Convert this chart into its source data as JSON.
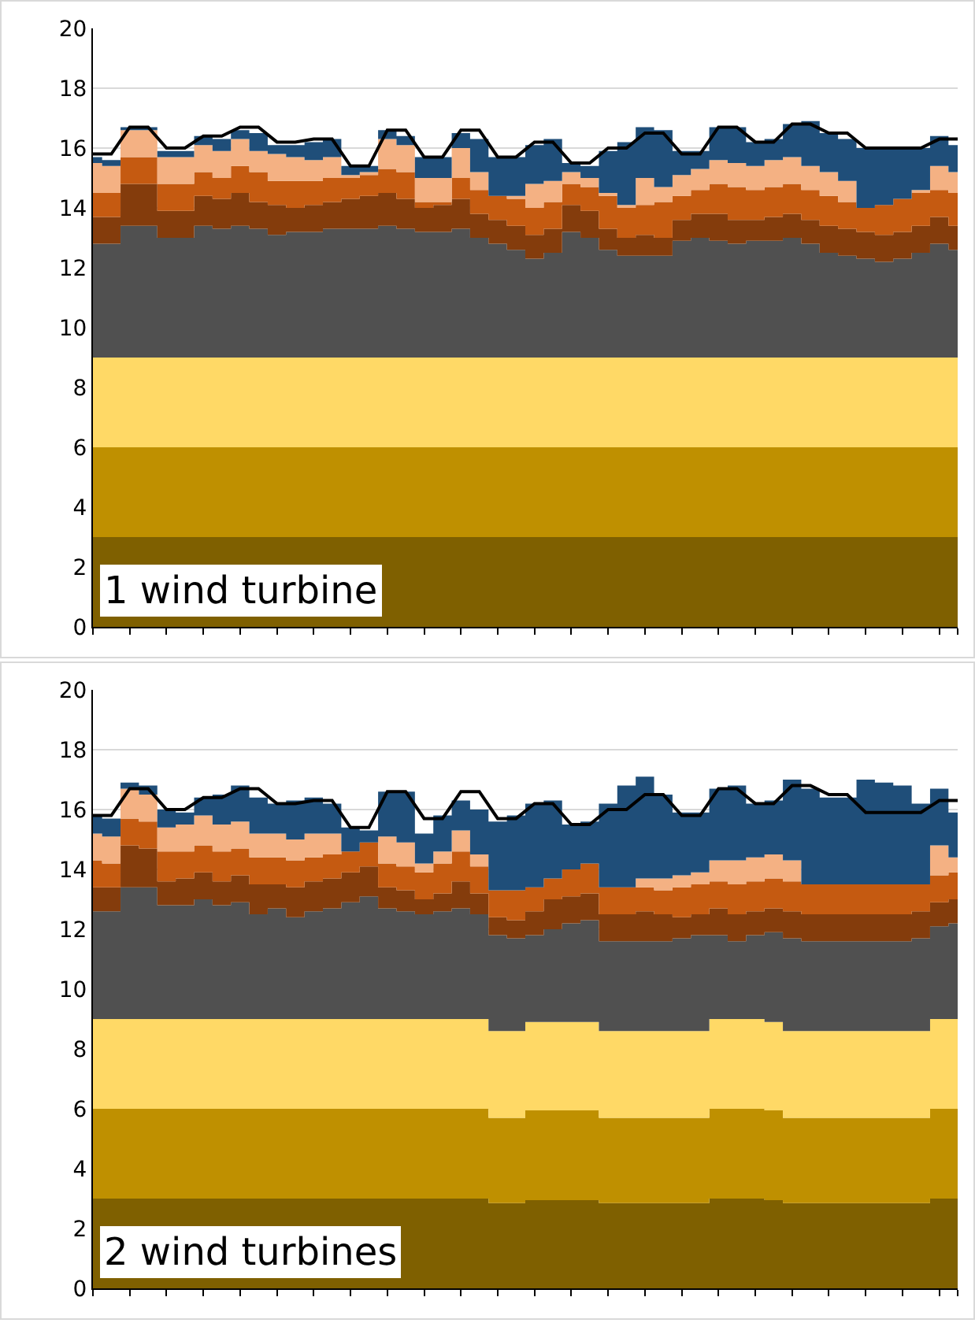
{
  "chart_data": [
    {
      "type": "area",
      "stacked": true,
      "annotations": [
        "1 wind turbine"
      ],
      "categories": [
        null,
        null,
        null,
        null,
        null,
        null,
        null,
        null,
        null,
        null,
        null,
        null,
        null,
        null,
        null,
        null,
        null,
        null,
        null,
        null,
        null,
        null,
        null,
        null,
        null,
        null,
        null,
        null,
        null,
        null,
        null,
        null,
        null,
        null,
        null,
        null,
        null,
        null,
        null,
        null,
        null,
        null,
        null,
        null,
        null,
        null,
        null,
        null
      ],
      "ylim": [
        0,
        20
      ],
      "yticks": [
        0,
        2,
        4,
        6,
        8,
        10,
        12,
        14,
        16,
        18,
        20
      ],
      "grid": "y",
      "tick_labels": "y",
      "series": [
        {
          "color": "#7f6000",
          "values": [
            3,
            3,
            3,
            3,
            3,
            3,
            3,
            3,
            3,
            3,
            3,
            3,
            3,
            3,
            3,
            3,
            3,
            3,
            3,
            3,
            3,
            3,
            3,
            3,
            3,
            3,
            3,
            3,
            3,
            3,
            3,
            3,
            3,
            3,
            3,
            3,
            3,
            3,
            3,
            3,
            3,
            3,
            3,
            3,
            3,
            3,
            3,
            3
          ]
        },
        {
          "color": "#bf9000",
          "values": [
            3,
            3,
            3,
            3,
            3,
            3,
            3,
            3,
            3,
            3,
            3,
            3,
            3,
            3,
            3,
            3,
            3,
            3,
            3,
            3,
            3,
            3,
            3,
            3,
            3,
            3,
            3,
            3,
            3,
            3,
            3,
            3,
            3,
            3,
            3,
            3,
            3,
            3,
            3,
            3,
            3,
            3,
            3,
            3,
            3,
            3,
            3,
            3
          ]
        },
        {
          "color": "#ffd966",
          "values": [
            3,
            3,
            3,
            3,
            3,
            3,
            3,
            3,
            3,
            3,
            3,
            3,
            3,
            3,
            3,
            3,
            3,
            3,
            3,
            3,
            3,
            3,
            3,
            3,
            3,
            3,
            3,
            3,
            3,
            3,
            3,
            3,
            3,
            3,
            3,
            3,
            3,
            3,
            3,
            3,
            3,
            3,
            3,
            3,
            3,
            3,
            3,
            3
          ]
        },
        {
          "color": "#505050",
          "values": [
            3.8,
            3.8,
            4.4,
            4.4,
            4.0,
            4.0,
            4.4,
            4.3,
            4.4,
            4.3,
            4.1,
            4.2,
            4.2,
            4.3,
            4.3,
            4.3,
            4.4,
            4.3,
            4.2,
            4.2,
            4.3,
            4.0,
            3.8,
            3.6,
            3.3,
            3.5,
            4.2,
            4.0,
            3.6,
            3.4,
            3.4,
            3.4,
            3.9,
            4.0,
            3.9,
            3.8,
            3.9,
            3.9,
            4.0,
            3.8,
            3.5,
            3.4,
            3.3,
            3.2,
            3.3,
            3.5,
            3.8,
            3.6
          ]
        },
        {
          "color": "#843c0c",
          "values": [
            0.9,
            0.9,
            1.4,
            1.4,
            0.9,
            0.9,
            1.0,
            1.0,
            1.1,
            0.9,
            1.0,
            0.8,
            0.9,
            0.9,
            1.0,
            1.1,
            1.1,
            1.0,
            0.8,
            0.9,
            1.0,
            0.8,
            0.8,
            0.8,
            0.8,
            0.8,
            0.9,
            0.9,
            0.7,
            0.6,
            0.7,
            0.6,
            0.7,
            0.8,
            0.9,
            0.8,
            0.7,
            0.8,
            0.8,
            0.8,
            0.9,
            0.9,
            0.9,
            0.9,
            0.9,
            0.9,
            0.9,
            0.8
          ]
        },
        {
          "color": "#c55a11",
          "values": [
            0.8,
            0.8,
            0.9,
            0.9,
            0.9,
            0.9,
            0.8,
            0.7,
            0.9,
            1.0,
            0.8,
            0.9,
            0.8,
            0.8,
            0.7,
            0.7,
            0.8,
            0.9,
            0.2,
            0.1,
            0.7,
            0.8,
            0.8,
            0.9,
            0.9,
            0.9,
            0.7,
            0.8,
            1.1,
            1.0,
            1.0,
            1.2,
            0.8,
            0.8,
            1.0,
            1.1,
            1.0,
            1.0,
            1.0,
            1.0,
            1.0,
            0.9,
            0.8,
            1.0,
            1.1,
            1.1,
            0.9,
            1.1
          ]
        },
        {
          "color": "#f4b183",
          "values": [
            1.0,
            0.9,
            0.9,
            0.9,
            0.9,
            0.9,
            0.9,
            0.9,
            0.9,
            0.7,
            0.9,
            0.8,
            0.7,
            0.7,
            0.1,
            0.1,
            1.0,
            0.9,
            0.8,
            0.8,
            1.0,
            0.6,
            0,
            0.1,
            0.8,
            0.7,
            0.4,
            0.3,
            0.1,
            0.1,
            0.9,
            0.5,
            0.7,
            0.7,
            0.8,
            0.8,
            0.8,
            0.9,
            0.9,
            0.8,
            0.8,
            0.7,
            0,
            0,
            0,
            0.1,
            0.8,
            0.7
          ]
        },
        {
          "color": "#1f4e79",
          "values": [
            0.2,
            0.2,
            0.1,
            0.1,
            0.2,
            0.2,
            0.3,
            0.4,
            0.3,
            0.6,
            0.3,
            0.4,
            0.6,
            0.6,
            0.3,
            0.2,
            0.3,
            0.3,
            0.7,
            0.7,
            0.5,
            1.1,
            1.3,
            1.3,
            1.3,
            1.4,
            0.3,
            0.4,
            1.4,
            2.1,
            1.7,
            1.9,
            0.8,
            0.6,
            1.1,
            1.2,
            0.8,
            0.7,
            1.1,
            1.5,
            1.3,
            1.4,
            2.0,
            1.9,
            1.7,
            1.4,
            1.0,
            0.9
          ]
        },
        {
          "type": "line",
          "color": "#000000",
          "values": [
            15.8,
            15.8,
            16.7,
            16.7,
            16.0,
            16.0,
            16.4,
            16.4,
            16.7,
            16.7,
            16.2,
            16.2,
            16.3,
            16.3,
            15.4,
            15.4,
            16.6,
            16.6,
            15.7,
            15.7,
            16.6,
            16.6,
            15.7,
            15.7,
            16.2,
            16.2,
            15.5,
            15.5,
            16.0,
            16.0,
            16.5,
            16.5,
            15.8,
            15.8,
            16.7,
            16.7,
            16.2,
            16.2,
            16.8,
            16.8,
            16.5,
            16.5,
            16.0,
            16.0,
            16.0,
            16.0,
            16.3,
            16.3
          ]
        }
      ]
    },
    {
      "type": "area",
      "stacked": true,
      "annotations": [
        "2 wind turbines"
      ],
      "categories": [
        null,
        null,
        null,
        null,
        null,
        null,
        null,
        null,
        null,
        null,
        null,
        null,
        null,
        null,
        null,
        null,
        null,
        null,
        null,
        null,
        null,
        null,
        null,
        null,
        null,
        null,
        null,
        null,
        null,
        null,
        null,
        null,
        null,
        null,
        null,
        null,
        null,
        null,
        null,
        null,
        null,
        null,
        null,
        null,
        null,
        null,
        null,
        null
      ],
      "ylim": [
        0,
        20
      ],
      "yticks": [
        0,
        2,
        4,
        6,
        8,
        10,
        12,
        14,
        16,
        18,
        20
      ],
      "grid": "y",
      "tick_labels": "y",
      "series": [
        {
          "color": "#7f6000",
          "values": [
            3,
            3,
            3,
            3,
            3,
            3,
            3,
            3,
            3,
            3,
            3,
            3,
            3,
            3,
            3,
            3,
            3,
            3,
            3,
            3,
            3,
            3,
            2.85,
            2.85,
            2.95,
            2.95,
            2.95,
            2.95,
            2.85,
            2.85,
            2.85,
            2.85,
            2.85,
            2.85,
            3,
            3,
            3,
            2.95,
            2.85,
            2.85,
            2.85,
            2.85,
            2.85,
            2.85,
            2.85,
            2.85,
            3,
            3
          ]
        },
        {
          "color": "#bf9000",
          "values": [
            3,
            3,
            3,
            3,
            3,
            3,
            3,
            3,
            3,
            3,
            3,
            3,
            3,
            3,
            3,
            3,
            3,
            3,
            3,
            3,
            3,
            3,
            2.85,
            2.85,
            3,
            3,
            3,
            3,
            2.85,
            2.85,
            2.85,
            2.85,
            2.85,
            2.85,
            3,
            3,
            3,
            3,
            2.85,
            2.85,
            2.85,
            2.85,
            2.85,
            2.85,
            2.85,
            2.85,
            3,
            3
          ]
        },
        {
          "color": "#ffd966",
          "values": [
            3,
            3,
            3,
            3,
            3,
            3,
            3,
            3,
            3,
            3,
            3,
            3,
            3,
            3,
            3,
            3,
            3,
            3,
            3,
            3,
            3,
            3,
            2.9,
            2.9,
            2.95,
            2.95,
            2.95,
            2.95,
            2.9,
            2.9,
            2.9,
            2.9,
            2.9,
            2.9,
            3,
            3,
            3,
            2.95,
            2.9,
            2.9,
            2.9,
            2.9,
            2.9,
            2.9,
            2.9,
            2.9,
            3,
            3
          ]
        },
        {
          "color": "#505050",
          "values": [
            3.6,
            3.6,
            4.4,
            4.4,
            3.8,
            3.8,
            4.0,
            3.8,
            3.9,
            3.5,
            3.7,
            3.4,
            3.6,
            3.7,
            3.9,
            4.1,
            3.7,
            3.6,
            3.5,
            3.6,
            3.7,
            3.5,
            3.2,
            3.1,
            2.9,
            3.1,
            3.3,
            3.4,
            3.0,
            3.0,
            3.0,
            3.0,
            3.1,
            3.2,
            2.8,
            2.6,
            2.8,
            3.0,
            3.1,
            3.0,
            3.0,
            3.0,
            3.0,
            3.0,
            3.0,
            3.1,
            3.1,
            3.2
          ]
        },
        {
          "color": "#843c0c",
          "values": [
            0.8,
            0.8,
            1.4,
            1.3,
            0.8,
            0.9,
            0.9,
            0.8,
            0.9,
            1.0,
            0.8,
            1.0,
            1.0,
            1.0,
            1.0,
            1.0,
            0.7,
            0.7,
            0.5,
            0.6,
            0.9,
            0.7,
            0.6,
            0.6,
            0.8,
            1.0,
            0.9,
            0.9,
            0.9,
            0.9,
            1.0,
            0.9,
            0.7,
            0.7,
            0.9,
            0.9,
            0.8,
            0.8,
            0.9,
            0.9,
            0.9,
            0.9,
            0.9,
            0.9,
            0.9,
            0.9,
            0.8,
            0.8
          ]
        },
        {
          "color": "#c55a11",
          "values": [
            0.9,
            0.8,
            0.9,
            0.9,
            1.0,
            0.9,
            0.9,
            1.0,
            0.9,
            0.9,
            0.9,
            0.9,
            0.8,
            0.8,
            0.7,
            0.8,
            0.8,
            0.8,
            0.9,
            1.0,
            1.0,
            0.9,
            0.9,
            1.0,
            0.8,
            0.7,
            0.9,
            1.0,
            0.9,
            0.9,
            0.8,
            0.8,
            1.0,
            1.0,
            0.9,
            1.0,
            1.0,
            1.0,
            1.0,
            1.0,
            1.0,
            1.0,
            1.0,
            1.0,
            1.0,
            0.9,
            0.9,
            0.9
          ]
        },
        {
          "color": "#f4b183",
          "values": [
            0.9,
            0.9,
            1.0,
            0.9,
            0.8,
            0.9,
            1.0,
            0.9,
            0.9,
            0.8,
            0.8,
            0.7,
            0.8,
            0.7,
            0,
            0,
            0.9,
            0.8,
            0.3,
            0.4,
            0.7,
            0.4,
            0,
            0,
            0,
            0,
            0,
            0,
            0,
            0,
            0.3,
            0.4,
            0.4,
            0.4,
            0.7,
            0.8,
            0.8,
            0.8,
            0.7,
            0,
            0,
            0,
            0,
            0,
            0,
            0,
            1.0,
            0.5
          ]
        },
        {
          "color": "#1f4e79",
          "values": [
            0.6,
            0.6,
            0.2,
            0.3,
            0.6,
            0.4,
            0.6,
            1.0,
            1.2,
            1.2,
            1.0,
            1.3,
            1.2,
            1.0,
            0.8,
            0.4,
            1.5,
            1.7,
            1.0,
            1.2,
            1.0,
            1.5,
            2.3,
            2.5,
            2.8,
            2.6,
            1.5,
            1.4,
            2.8,
            3.4,
            3.4,
            2.8,
            2.1,
            2.0,
            2.4,
            2.5,
            1.8,
            1.8,
            2.7,
            3.2,
            2.9,
            2.9,
            3.5,
            3.4,
            3.3,
            2.7,
            1.9,
            1.5
          ]
        },
        {
          "type": "line",
          "color": "#000000",
          "values": [
            15.8,
            15.8,
            16.7,
            16.7,
            16.0,
            16.0,
            16.4,
            16.4,
            16.7,
            16.7,
            16.2,
            16.2,
            16.3,
            16.3,
            15.4,
            15.4,
            16.6,
            16.6,
            15.7,
            15.7,
            16.6,
            16.6,
            15.7,
            15.7,
            16.2,
            16.2,
            15.5,
            15.5,
            16.0,
            16.0,
            16.5,
            16.5,
            15.8,
            15.8,
            16.7,
            16.7,
            16.2,
            16.2,
            16.8,
            16.8,
            16.5,
            16.5,
            15.9,
            15.9,
            15.9,
            15.9,
            16.3,
            16.3
          ]
        }
      ]
    }
  ]
}
